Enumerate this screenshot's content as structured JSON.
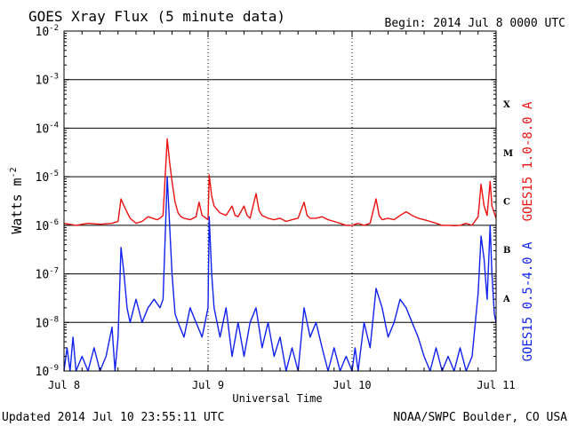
{
  "title": "GOES Xray Flux (5 minute data)",
  "begin_label": "Begin:  2014 Jul 8 0000 UTC",
  "updated_label": "Updated 2014 Jul 10 23:55:11 UTC",
  "source_label": "NOAA/SWPC Boulder, CO USA",
  "chart_data": {
    "type": "line",
    "title": "GOES Xray Flux (5 minute data)",
    "xlabel": "Universal Time",
    "ylabel_base": "Watts m",
    "ylabel_exp": "-2",
    "yscale": "log",
    "ylim": [
      1e-09,
      0.01
    ],
    "xlim_hours": [
      0,
      72
    ],
    "x_ticks": [
      {
        "label": "Jul 8",
        "hour": 0
      },
      {
        "label": "Jul 9",
        "hour": 24
      },
      {
        "label": "Jul 10",
        "hour": 48
      },
      {
        "label": "Jul 11",
        "hour": 72
      }
    ],
    "y_ticks": [
      {
        "exp": -9
      },
      {
        "exp": -8
      },
      {
        "exp": -7
      },
      {
        "exp": -6
      },
      {
        "exp": -5
      },
      {
        "exp": -4
      },
      {
        "exp": -3
      },
      {
        "exp": -2
      }
    ],
    "flare_classes": [
      {
        "label": "X",
        "lower": 0.0001
      },
      {
        "label": "M",
        "lower": 1e-05
      },
      {
        "label": "C",
        "lower": 1e-06
      },
      {
        "label": "B",
        "lower": 1e-07
      },
      {
        "label": "A",
        "lower": 1e-08
      }
    ],
    "grid": true,
    "series": [
      {
        "name": "GOES15 1.0-8.0 A",
        "color": "#ee1111",
        "points": [
          [
            0,
            1.1e-06
          ],
          [
            2,
            1e-06
          ],
          [
            4,
            1.1e-06
          ],
          [
            6,
            1.05e-06
          ],
          [
            8,
            1.1e-06
          ],
          [
            9,
            1.2e-06
          ],
          [
            9.5,
            3.5e-06
          ],
          [
            10,
            2.5e-06
          ],
          [
            11,
            1.4e-06
          ],
          [
            12,
            1.1e-06
          ],
          [
            13,
            1.2e-06
          ],
          [
            14,
            1.5e-06
          ],
          [
            15.5,
            1.3e-06
          ],
          [
            16,
            1.4e-06
          ],
          [
            16.5,
            1.6e-06
          ],
          [
            17.2,
            6e-05
          ],
          [
            17.6,
            2e-05
          ],
          [
            18,
            8e-06
          ],
          [
            18.5,
            3e-06
          ],
          [
            19,
            1.8e-06
          ],
          [
            19.5,
            1.5e-06
          ],
          [
            20,
            1.4e-06
          ],
          [
            21,
            1.3e-06
          ],
          [
            22,
            1.5e-06
          ],
          [
            22.5,
            3e-06
          ],
          [
            23,
            1.6e-06
          ],
          [
            24,
            1.3e-06
          ],
          [
            24.2,
            1.1e-05
          ],
          [
            24.6,
            4e-06
          ],
          [
            25,
            2.5e-06
          ],
          [
            26,
            1.8e-06
          ],
          [
            27,
            1.6e-06
          ],
          [
            28,
            2.5e-06
          ],
          [
            28.5,
            1.6e-06
          ],
          [
            29,
            1.5e-06
          ],
          [
            30,
            2.5e-06
          ],
          [
            30.5,
            1.6e-06
          ],
          [
            31,
            1.4e-06
          ],
          [
            32,
            4.5e-06
          ],
          [
            32.5,
            2e-06
          ],
          [
            33,
            1.6e-06
          ],
          [
            34,
            1.4e-06
          ],
          [
            35,
            1.3e-06
          ],
          [
            36,
            1.4e-06
          ],
          [
            37,
            1.2e-06
          ],
          [
            38,
            1.3e-06
          ],
          [
            39,
            1.4e-06
          ],
          [
            40,
            3e-06
          ],
          [
            40.5,
            1.6e-06
          ],
          [
            41,
            1.4e-06
          ],
          [
            42,
            1.4e-06
          ],
          [
            43,
            1.5e-06
          ],
          [
            44,
            1.3e-06
          ],
          [
            45,
            1.2e-06
          ],
          [
            46,
            1.1e-06
          ],
          [
            47,
            1e-06
          ],
          [
            48,
            1e-06
          ],
          [
            49,
            1.1e-06
          ],
          [
            50,
            1e-06
          ],
          [
            51,
            1.1e-06
          ],
          [
            52,
            3.5e-06
          ],
          [
            52.5,
            1.6e-06
          ],
          [
            53,
            1.3e-06
          ],
          [
            54,
            1.4e-06
          ],
          [
            55,
            1.3e-06
          ],
          [
            56,
            1.6e-06
          ],
          [
            57,
            1.9e-06
          ],
          [
            58,
            1.6e-06
          ],
          [
            59,
            1.4e-06
          ],
          [
            60,
            1.3e-06
          ],
          [
            61,
            1.2e-06
          ],
          [
            62,
            1.1e-06
          ],
          [
            63,
            1e-06
          ],
          [
            64,
            1e-06
          ],
          [
            65,
            9.8e-07
          ],
          [
            66,
            1e-06
          ],
          [
            67,
            1.1e-06
          ],
          [
            68,
            1e-06
          ],
          [
            69,
            1.5e-06
          ],
          [
            69.5,
            7e-06
          ],
          [
            70,
            2.5e-06
          ],
          [
            70.5,
            1.6e-06
          ],
          [
            71,
            8e-06
          ],
          [
            71.3,
            2.5e-06
          ],
          [
            72,
            1.4e-06
          ]
        ]
      },
      {
        "name": "GOES15 0.5-4.0 A",
        "color": "#1122ee",
        "points": [
          [
            0,
            1e-09
          ],
          [
            0.5,
            3e-09
          ],
          [
            1,
            1e-09
          ],
          [
            1.5,
            5e-09
          ],
          [
            2,
            1e-09
          ],
          [
            3,
            2e-09
          ],
          [
            4,
            1e-09
          ],
          [
            5,
            3e-09
          ],
          [
            6,
            1e-09
          ],
          [
            7,
            2e-09
          ],
          [
            8,
            8e-09
          ],
          [
            8.5,
            1e-09
          ],
          [
            9,
            5e-09
          ],
          [
            9.5,
            3.5e-07
          ],
          [
            10,
            1e-07
          ],
          [
            10.5,
            2e-08
          ],
          [
            11,
            1e-08
          ],
          [
            12,
            3e-08
          ],
          [
            13,
            1e-08
          ],
          [
            14,
            2e-08
          ],
          [
            15,
            3e-08
          ],
          [
            16,
            2e-08
          ],
          [
            16.5,
            3e-08
          ],
          [
            17.2,
            1e-05
          ],
          [
            17.6,
            1e-06
          ],
          [
            18,
            1e-07
          ],
          [
            18.5,
            1.5e-08
          ],
          [
            19,
            1e-08
          ],
          [
            20,
            5e-09
          ],
          [
            21,
            2e-08
          ],
          [
            22,
            1e-08
          ],
          [
            23,
            5e-09
          ],
          [
            24,
            2e-08
          ],
          [
            24.2,
            1.5e-06
          ],
          [
            24.6,
            1e-07
          ],
          [
            25,
            2e-08
          ],
          [
            26,
            5e-09
          ],
          [
            27,
            2e-08
          ],
          [
            28,
            2e-09
          ],
          [
            29,
            1e-08
          ],
          [
            30,
            2e-09
          ],
          [
            31,
            1e-08
          ],
          [
            32,
            2e-08
          ],
          [
            33,
            3e-09
          ],
          [
            34,
            1e-08
          ],
          [
            35,
            2e-09
          ],
          [
            36,
            5e-09
          ],
          [
            37,
            1e-09
          ],
          [
            38,
            3e-09
          ],
          [
            39,
            1e-09
          ],
          [
            40,
            2e-08
          ],
          [
            41,
            5e-09
          ],
          [
            42,
            1e-08
          ],
          [
            43,
            3e-09
          ],
          [
            44,
            1e-09
          ],
          [
            45,
            3e-09
          ],
          [
            46,
            1e-09
          ],
          [
            47,
            2e-09
          ],
          [
            48,
            1e-09
          ],
          [
            48.5,
            3e-09
          ],
          [
            49,
            1e-09
          ],
          [
            50,
            1e-08
          ],
          [
            51,
            3e-09
          ],
          [
            52,
            5e-08
          ],
          [
            53,
            2e-08
          ],
          [
            54,
            5e-09
          ],
          [
            55,
            1e-08
          ],
          [
            56,
            3e-08
          ],
          [
            57,
            2e-08
          ],
          [
            58,
            1e-08
          ],
          [
            59,
            5e-09
          ],
          [
            60,
            2e-09
          ],
          [
            61,
            1e-09
          ],
          [
            62,
            3e-09
          ],
          [
            63,
            1e-09
          ],
          [
            64,
            2e-09
          ],
          [
            65,
            1e-09
          ],
          [
            66,
            3e-09
          ],
          [
            67,
            1e-09
          ],
          [
            68,
            2e-09
          ],
          [
            69,
            4e-08
          ],
          [
            69.5,
            6e-07
          ],
          [
            70,
            2e-07
          ],
          [
            70.5,
            3e-08
          ],
          [
            71,
            1e-06
          ],
          [
            71.3,
            1e-07
          ],
          [
            71.7,
            1.5e-08
          ],
          [
            72,
            1e-08
          ]
        ]
      }
    ]
  }
}
